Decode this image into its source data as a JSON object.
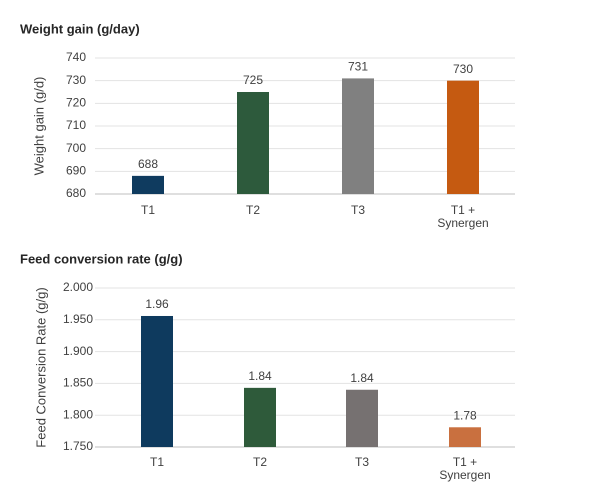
{
  "chart_data": [
    {
      "type": "bar",
      "title": "Weight gain (g/day)",
      "y_label": "Weight gain (g/d)",
      "categories": [
        "T1",
        "T2",
        "T3",
        "T1 + Synergen"
      ],
      "values": [
        688,
        725,
        731,
        730
      ],
      "colors": [
        "#0f3b5f",
        "#2d5a3c",
        "#808080",
        "#c55a11"
      ],
      "ylim": [
        680,
        740
      ],
      "yticks": [
        680,
        690,
        700,
        710,
        720,
        730,
        740
      ],
      "grid": true
    },
    {
      "type": "bar",
      "title": "Feed conversion rate (g/g)",
      "y_label": "Feed Conversion Rate (g/g)",
      "categories": [
        "T1",
        "T2",
        "T3",
        "T1 + Synergen"
      ],
      "values": [
        1.956,
        1.843,
        1.84,
        1.781
      ],
      "value_labels": [
        "1.96",
        "1.84",
        "1.84",
        "1.78"
      ],
      "colors": [
        "#0e3a5e",
        "#2e5a3a",
        "#767171",
        "#c9703f"
      ],
      "ylim": [
        1.75,
        2.0
      ],
      "yticks": [
        {
          "value": 1.75,
          "label": "1.750"
        },
        {
          "value": 1.8,
          "label": "1.800"
        },
        {
          "value": 1.85,
          "label": "1.850"
        },
        {
          "value": 1.9,
          "label": "1.900"
        },
        {
          "value": 1.95,
          "label": "1.950"
        },
        {
          "value": 2.0,
          "label": "2.000"
        }
      ],
      "grid": true
    }
  ]
}
